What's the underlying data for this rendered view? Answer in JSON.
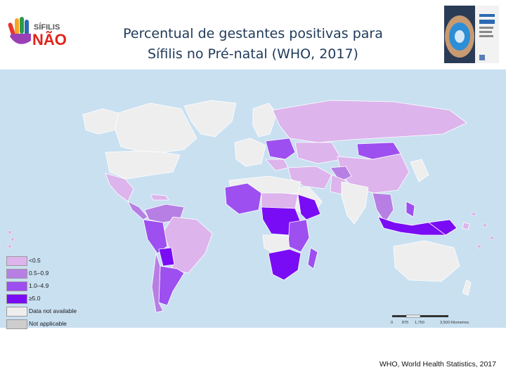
{
  "header": {
    "title_line1": "Percentual de gestantes positivas para",
    "title_line2": "Sífilis no Pré-natal (WHO, 2017)",
    "logo": {
      "text_top": "SÍFILIS",
      "text_main": "NÃO",
      "icon": "hand-logo-icon"
    },
    "cover_icon": "report-cover-pregnant-belly-icon"
  },
  "map": {
    "projection": "world-robinson",
    "ocean_color": "#c9e0f1",
    "legend": [
      {
        "label": "<0.5",
        "color": "#ddb4ec"
      },
      {
        "label": "0.5–0.9",
        "color": "#b77fe4"
      },
      {
        "label": "1.0–4.9",
        "color": "#9d4ff0"
      },
      {
        "label": "≥5.0",
        "color": "#7a0cf5"
      },
      {
        "label": "Data not available",
        "color": "#eeeeee"
      },
      {
        "label": "Not applicable",
        "color": "#cdcdcd"
      }
    ],
    "scale_bar": {
      "ticks": [
        "0",
        "875",
        "1,750",
        "3,500 Kilometres"
      ]
    }
  },
  "footer": {
    "source": "WHO, World Health Statistics, 2017"
  }
}
